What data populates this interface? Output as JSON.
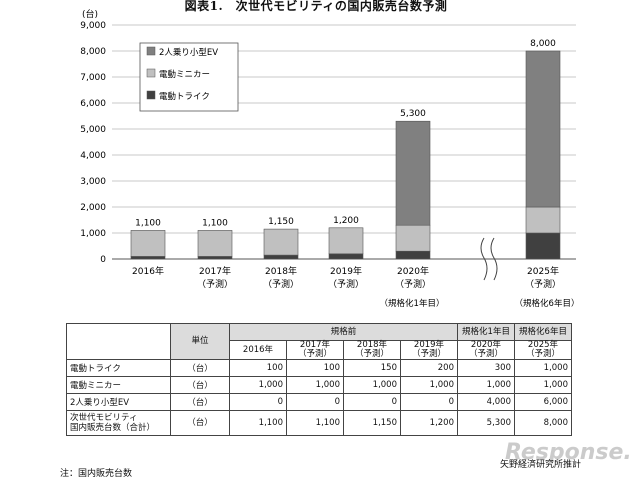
{
  "title": "図表1.　次世代モビリティの国内販売台数予測",
  "chart_data": {
    "type": "bar",
    "stacked": true,
    "y_unit": "(台)",
    "ylim": [
      0,
      9000
    ],
    "yticks": [
      "0",
      "1,000",
      "2,000",
      "3,000",
      "4,000",
      "5,000",
      "6,000",
      "7,000",
      "8,000",
      "9,000"
    ],
    "grid": true,
    "legend_position": "top-left",
    "categories": [
      {
        "line1": "2016年",
        "line2": ""
      },
      {
        "line1": "2017年",
        "line2": "（予測）"
      },
      {
        "line1": "2018年",
        "line2": "（予測）"
      },
      {
        "line1": "2019年",
        "line2": "（予測）"
      },
      {
        "line1": "2020年",
        "line2": "（予測）"
      },
      {
        "line1": "2025年",
        "line2": "（予測）"
      }
    ],
    "series": [
      {
        "name": "電動トライク",
        "color": "#404040",
        "values": [
          100,
          100,
          150,
          200,
          300,
          1000
        ]
      },
      {
        "name": "電動ミニカー",
        "color": "#c0c0c0",
        "values": [
          1000,
          1000,
          1000,
          1000,
          1000,
          1000
        ]
      },
      {
        "name": "2人乗り小型EV",
        "color": "#808080",
        "values": [
          0,
          0,
          0,
          0,
          4000,
          6000
        ]
      }
    ],
    "legend_order": [
      "2人乗り小型EV",
      "電動ミニカー",
      "電動トライク"
    ],
    "totals": [
      "1,100",
      "1,100",
      "1,150",
      "1,200",
      "5,300",
      "8,000"
    ],
    "annotations": [
      "（規格化1年目）",
      "（規格化6年目）"
    ]
  },
  "table": {
    "unit_header": "単位",
    "group_header": "規格前",
    "group_header_2020": "規格化1年目",
    "group_header_2025": "規格化6年目",
    "year_headers": [
      {
        "line1": "2016年",
        "line2": ""
      },
      {
        "line1": "2017年",
        "line2": "（予測）"
      },
      {
        "line1": "2018年",
        "line2": "（予測）"
      },
      {
        "line1": "2019年",
        "line2": "（予測）"
      },
      {
        "line1": "2020年",
        "line2": "（予測）"
      },
      {
        "line1": "2025年",
        "line2": "（予測）"
      }
    ],
    "rows": [
      {
        "label": "電動トライク",
        "unit": "（台）",
        "values": [
          "100",
          "100",
          "150",
          "200",
          "300",
          "1,000"
        ]
      },
      {
        "label": "電動ミニカー",
        "unit": "（台）",
        "values": [
          "1,000",
          "1,000",
          "1,000",
          "1,000",
          "1,000",
          "1,000"
        ]
      },
      {
        "label": "2人乗り小型EV",
        "unit": "（台）",
        "values": [
          "0",
          "0",
          "0",
          "0",
          "4,000",
          "6,000"
        ]
      }
    ],
    "total_row": {
      "label1": "次世代モビリティ",
      "label2": "国内販売台数（合計）",
      "unit": "（台）",
      "values": [
        "1,100",
        "1,100",
        "1,150",
        "1,200",
        "5,300",
        "8,000"
      ]
    }
  },
  "watermark": "Response.",
  "source": "矢野経済研究所推計",
  "footnote": "注：国内販売台数"
}
